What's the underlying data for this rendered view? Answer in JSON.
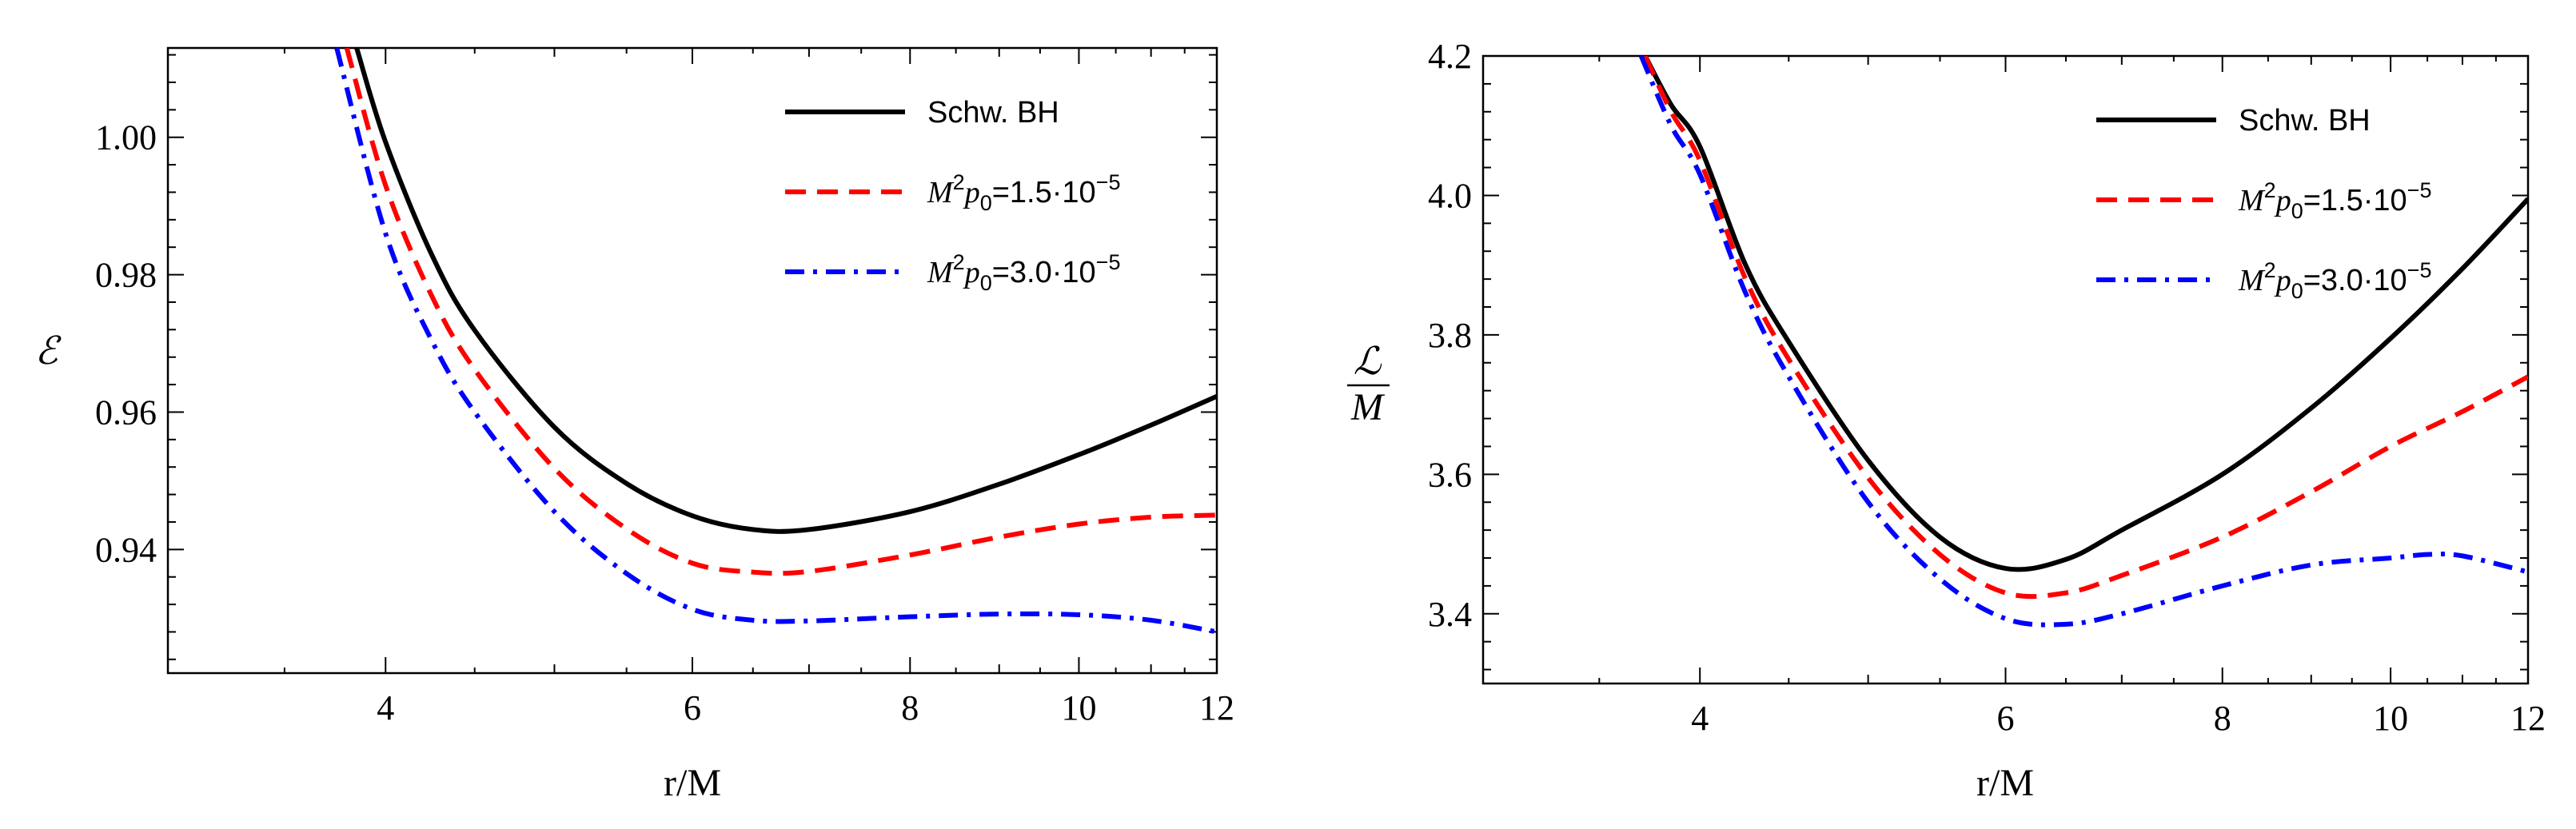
{
  "chart_data": [
    {
      "type": "line",
      "id": "energy",
      "xlabel": "r/M",
      "ylabel": "ℰ",
      "xlim": [
        3.0,
        12.0
      ],
      "ylim": [
        0.922,
        1.013
      ],
      "xscale": "log",
      "xticks": [
        4,
        6,
        8,
        10,
        12
      ],
      "yticks": [
        0.94,
        0.96,
        0.98,
        1.0
      ],
      "ytick_labels": [
        "0.94",
        "0.96",
        "0.98",
        "1.00"
      ],
      "legend_position": "top-right",
      "series": [
        {
          "name": "Schw. BH",
          "style": "solid",
          "color": "#000000",
          "x": [
            3.85,
            4.0,
            4.25,
            4.5,
            5.0,
            5.5,
            6.0,
            6.5,
            7.0,
            8.0,
            9.0,
            10.0,
            11.0,
            12.0
          ],
          "y": [
            1.013,
            0.9993,
            0.983,
            0.9719,
            0.9578,
            0.9496,
            0.9449,
            0.9429,
            0.9429,
            0.9455,
            0.9495,
            0.9538,
            0.9581,
            0.9623
          ]
        },
        {
          "name": "M²p₀=1.5·10⁻⁵",
          "style": "dashed",
          "color": "#ff0000",
          "x": [
            3.8,
            4.0,
            4.25,
            4.5,
            5.0,
            5.5,
            6.0,
            6.5,
            7.0,
            8.0,
            9.0,
            10.0,
            11.0,
            12.0
          ],
          "y": [
            1.013,
            0.993,
            0.977,
            0.9662,
            0.9518,
            0.943,
            0.938,
            0.9367,
            0.9368,
            0.9392,
            0.9418,
            0.9437,
            0.9447,
            0.945
          ]
        },
        {
          "name": "M²p₀=3.0·10⁻⁵",
          "style": "dashdot",
          "color": "#0000ff",
          "x": [
            3.75,
            4.0,
            4.25,
            4.5,
            5.0,
            5.5,
            6.0,
            6.5,
            7.0,
            8.0,
            9.0,
            10.0,
            11.0,
            12.0
          ],
          "y": [
            1.013,
            0.986,
            0.9705,
            0.96,
            0.9455,
            0.9365,
            0.9313,
            0.9297,
            0.9296,
            0.9302,
            0.9306,
            0.9305,
            0.9297,
            0.928
          ]
        }
      ]
    },
    {
      "type": "line",
      "id": "angular-momentum",
      "xlabel": "r/M",
      "ylabel_num": "ℒ",
      "ylabel_den": "M",
      "xlim": [
        3.0,
        12.0
      ],
      "ylim": [
        3.3,
        4.2
      ],
      "xscale": "log",
      "xticks": [
        4,
        6,
        8,
        10,
        12
      ],
      "yticks": [
        3.4,
        3.6,
        3.8,
        4.0,
        4.2
      ],
      "ytick_labels": [
        "3.4",
        "3.6",
        "3.8",
        "4.0",
        "4.2"
      ],
      "legend_position": "top-right",
      "series": [
        {
          "name": "Schw. BH",
          "style": "solid",
          "color": "#000000",
          "x": [
            3.72,
            3.85,
            4.0,
            4.25,
            4.5,
            5.0,
            5.5,
            6.0,
            6.5,
            7.0,
            8.0,
            9.0,
            10.0,
            11.0,
            12.0
          ],
          "y": [
            4.2,
            4.13,
            4.07,
            3.9,
            3.79,
            3.62,
            3.51,
            3.465,
            3.478,
            3.52,
            3.6,
            3.695,
            3.795,
            3.895,
            3.995
          ]
        },
        {
          "name": "M²p₀=1.5·10⁻⁵",
          "style": "dashed",
          "color": "#ff0000",
          "x": [
            3.72,
            3.85,
            4.0,
            4.25,
            4.5,
            5.0,
            5.5,
            6.0,
            6.5,
            7.0,
            8.0,
            9.0,
            10.0,
            11.0,
            12.0
          ],
          "y": [
            4.2,
            4.12,
            4.05,
            3.88,
            3.765,
            3.595,
            3.485,
            3.43,
            3.43,
            3.455,
            3.51,
            3.575,
            3.64,
            3.69,
            3.74
          ]
        },
        {
          "name": "M²p₀=3.0·10⁻⁵",
          "style": "dashdot",
          "color": "#0000ff",
          "x": [
            3.7,
            3.85,
            4.0,
            4.25,
            4.5,
            5.0,
            5.5,
            6.0,
            6.5,
            7.0,
            8.0,
            9.0,
            10.0,
            10.5,
            11.0,
            12.0
          ],
          "y": [
            4.2,
            4.1,
            4.03,
            3.86,
            3.74,
            3.56,
            3.45,
            3.393,
            3.385,
            3.4,
            3.44,
            3.47,
            3.48,
            3.485,
            3.483,
            3.46
          ]
        }
      ]
    }
  ],
  "legend": {
    "label1": "Schw. BH",
    "label2_prefix": "M",
    "label2_exp": "2",
    "label2_p": "p",
    "label2_sub": "0",
    "label2_value": "=1.5·10",
    "label2_pow": "−5",
    "label3_prefix": "M",
    "label3_exp": "2",
    "label3_p": "p",
    "label3_sub": "0",
    "label3_value": "=3.0·10",
    "label3_pow": "−5"
  }
}
